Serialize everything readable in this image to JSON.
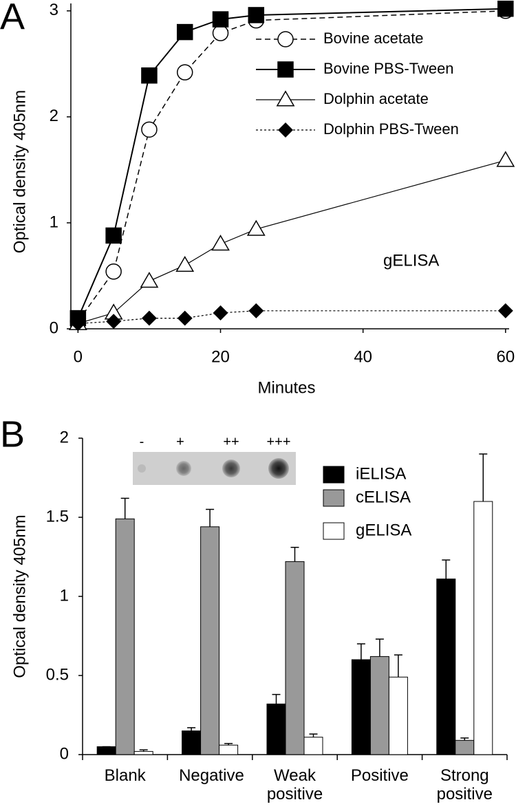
{
  "chart_data": [
    {
      "type": "line",
      "panel_label": "A",
      "x_label": "Minutes",
      "y_label": "Optical density 405nm",
      "annotation": "gELISA",
      "x": [
        0,
        5,
        10,
        15,
        20,
        25,
        60
      ],
      "series": [
        {
          "name": "Bovine acetate",
          "color": "#000000",
          "marker": "circle",
          "marker_fill": "#ffffff",
          "dash": "8,5",
          "line_width": 1.5,
          "values": [
            0.07,
            0.54,
            1.88,
            2.42,
            2.79,
            2.91,
            3.0
          ]
        },
        {
          "name": "Bovine PBS-Tween",
          "color": "#000000",
          "marker": "square",
          "marker_fill": "#000000",
          "dash": "none",
          "line_width": 2,
          "values": [
            0.1,
            0.88,
            2.39,
            2.8,
            2.92,
            2.96,
            3.02
          ]
        },
        {
          "name": "Dolphin acetate",
          "color": "#000000",
          "marker": "triangle",
          "marker_fill": "#ffffff",
          "dash": "none",
          "line_width": 1.2,
          "values": [
            0.05,
            0.15,
            0.45,
            0.6,
            0.8,
            0.94,
            1.59
          ]
        },
        {
          "name": "Dolphin PBS-Tween",
          "color": "#000000",
          "marker": "diamond",
          "marker_fill": "#000000",
          "dash": "3,3",
          "line_width": 1.2,
          "values": [
            0.05,
            0.07,
            0.1,
            0.1,
            0.15,
            0.17,
            0.17
          ]
        }
      ],
      "xlim": [
        -1,
        60.5
      ],
      "xticks": [
        0,
        20,
        40,
        60
      ],
      "ylim": [
        0,
        3.07
      ],
      "yticks": [
        0,
        1,
        2,
        3
      ],
      "grid": false,
      "legend": "top-right"
    },
    {
      "type": "bar",
      "panel_label": "B",
      "y_label": "Optical density 405nm",
      "categories": [
        "Blank",
        "Negative",
        "Weak positive",
        "Positive",
        "Strong positive"
      ],
      "series": [
        {
          "name": "iELISA",
          "color": "#000000",
          "values": [
            0.05,
            0.15,
            0.32,
            0.6,
            1.11
          ],
          "errors": [
            0,
            0.02,
            0.06,
            0.1,
            0.12
          ]
        },
        {
          "name": "cELISA",
          "color": "#999999",
          "values": [
            1.49,
            1.44,
            1.22,
            0.62,
            0.09
          ],
          "errors": [
            0.13,
            0.11,
            0.09,
            0.11,
            0.015
          ]
        },
        {
          "name": "gELISA",
          "color": "#ffffff",
          "values": [
            0.02,
            0.06,
            0.11,
            0.49,
            1.6
          ],
          "errors": [
            0.01,
            0.01,
            0.02,
            0.14,
            0.3
          ]
        }
      ],
      "inset_labels": [
        "-",
        "+",
        "++",
        "+++"
      ],
      "ylim": [
        0,
        2
      ],
      "yticks": [
        0,
        0.5,
        1,
        1.5,
        2
      ],
      "grid": false,
      "legend": "top-right"
    }
  ]
}
